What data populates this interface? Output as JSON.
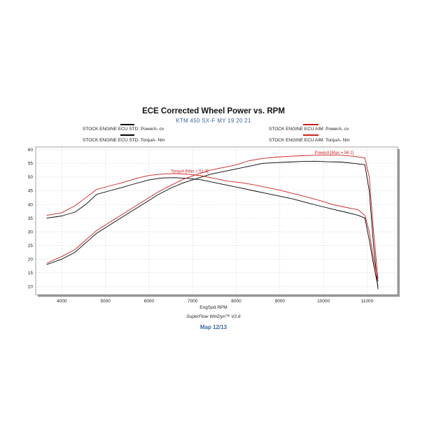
{
  "chart_data": {
    "type": "line",
    "title": "ECE Corrected Wheel Power vs. RPM",
    "subtitle": "KTM 450 SX-F MY 19 20 21",
    "xlabel": "EngSpd  RPM",
    "ylabel": "",
    "xlim": [
      3400,
      11700
    ],
    "ylim": [
      7,
      61
    ],
    "x_ticks": [
      4000,
      5000,
      6000,
      7000,
      8000,
      9000,
      10000,
      11000
    ],
    "y_ticks": [
      10,
      15,
      20,
      25,
      30,
      35,
      40,
      45,
      50,
      55,
      60
    ],
    "grid": true,
    "legend_position": "top",
    "series": [
      {
        "name": "STOCK ENGINE ECU STD: PowerA- cv",
        "color": "#000000",
        "x": [
          3650,
          4000,
          4300,
          4550,
          4800,
          5000,
          5300,
          5600,
          5900,
          6200,
          6500,
          6800,
          7100,
          7400,
          7700,
          8000,
          8300,
          8600,
          8900,
          9200,
          9500,
          9800,
          10100,
          10400,
          10700,
          10950,
          11050,
          11150,
          11250
        ],
        "y": [
          18,
          20,
          22.5,
          26,
          29.5,
          31.5,
          34.5,
          37.5,
          40.5,
          43.5,
          46,
          48,
          49.5,
          51,
          52,
          53,
          54,
          55,
          55.3,
          55.5,
          55.7,
          55.8,
          55.6,
          55.5,
          55,
          54.5,
          45,
          25,
          9
        ]
      },
      {
        "name": "STOCK ENGINE ECU STD: TorquA- Nm",
        "color": "#000000",
        "x": [
          3650,
          4000,
          4300,
          4550,
          4800,
          5100,
          5400,
          5700,
          6000,
          6300,
          6600,
          6900,
          7200,
          7500,
          7800,
          8100,
          8400,
          8700,
          9000,
          9300,
          9600,
          9900,
          10200,
          10500,
          10800,
          10950,
          11050,
          11150,
          11250
        ],
        "y": [
          35,
          35.8,
          37.2,
          40,
          43.7,
          45,
          46.3,
          47.7,
          49,
          49.7,
          49.8,
          49.5,
          49,
          48,
          47,
          46,
          45,
          44,
          43,
          42,
          40.7,
          39.5,
          38.3,
          37.2,
          36,
          35,
          27,
          18,
          10
        ]
      },
      {
        "name": "STOCK ENGINE ECU AIM: PowerA- cv",
        "color": "#cc1f1f",
        "x": [
          3650,
          4000,
          4300,
          4550,
          4800,
          5000,
          5300,
          5600,
          5900,
          6200,
          6500,
          6800,
          7100,
          7400,
          7700,
          8000,
          8300,
          8600,
          8900,
          9200,
          9500,
          9800,
          10100,
          10400,
          10700,
          10950,
          11050,
          11150,
          11250
        ],
        "y": [
          18.5,
          21,
          23.5,
          27,
          30.5,
          32.5,
          35.5,
          38.5,
          41.5,
          44.5,
          47,
          49.3,
          51,
          52.5,
          53.5,
          54.5,
          56,
          56.8,
          57.3,
          57.6,
          57.8,
          58,
          58.1,
          58,
          57.6,
          57,
          50,
          30,
          13
        ]
      },
      {
        "name": "STOCK ENGINE ECU AIM: TorquA- Nm",
        "color": "#cc1f1f",
        "x": [
          3650,
          4000,
          4300,
          4550,
          4800,
          5100,
          5400,
          5700,
          6000,
          6300,
          6600,
          6900,
          7200,
          7500,
          7800,
          8100,
          8400,
          8700,
          9000,
          9300,
          9600,
          9900,
          10200,
          10500,
          10800,
          10950,
          11050,
          11150,
          11250
        ],
        "y": [
          36,
          37,
          39.5,
          42.5,
          45.5,
          46.8,
          48,
          49.5,
          50.6,
          51.1,
          51.3,
          51,
          50.5,
          49.5,
          48.5,
          48,
          47.2,
          46.2,
          45.2,
          44,
          42.8,
          41.5,
          40,
          39,
          38,
          36,
          30,
          20,
          12
        ]
      }
    ],
    "annotations": [
      {
        "text": "PowerA [Max = 58.1]",
        "x": 9800,
        "y": 58.4,
        "color": "#cc1f1f"
      },
      {
        "text": "TorquA [Max = 51.3]",
        "x": 6500,
        "y": 51.6,
        "color": "#cc1f1f"
      }
    ]
  },
  "footer": {
    "software": "SuperFlow WinDyn™ V2.6",
    "map": "Map 12/13"
  },
  "colors": {
    "std": "#000000",
    "aim": "#cc1f1f",
    "subtitle": "#3a63a8",
    "grid": "#c8c8c8"
  }
}
